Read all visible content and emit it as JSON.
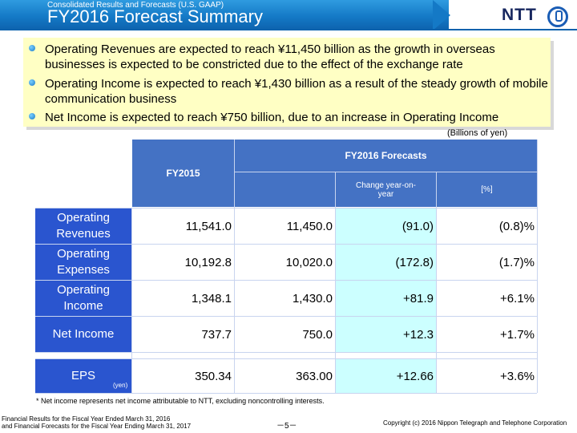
{
  "header": {
    "subtitle": "Consolidated Results and Forecasts (U.S. GAAP)",
    "title": "FY2016 Forecast Summary",
    "logo_text": "NTT"
  },
  "bullets": [
    "Operating Revenues are expected to reach ¥11,450 billion as the growth in overseas businesses is expected to be constricted due to the effect of the exchange rate",
    "Operating Income is expected to reach ¥1,430 billion as a result of the steady growth of mobile communication business",
    "Net Income is expected to reach ¥750 billion, due to an increase in Operating Income"
  ],
  "table": {
    "unit": "(Billions of yen)",
    "col_fy2015": "FY2015",
    "col_forecast": "FY2016 Forecasts",
    "col_change": "Change year-on-year",
    "col_pct": "[%]",
    "rows": [
      {
        "label": "Operating Revenues",
        "fy2015": "11,541.0",
        "fy2016": "11,450.0",
        "change": "(91.0)",
        "pct": "(0.8)%"
      },
      {
        "label": "Operating Expenses",
        "fy2015": "10,192.8",
        "fy2016": "10,020.0",
        "change": "(172.8)",
        "pct": "(1.7)%"
      },
      {
        "label": "Operating Income",
        "fy2015": "1,348.1",
        "fy2016": "1,430.0",
        "change": "+81.9",
        "pct": "+6.1%"
      },
      {
        "label": "Net Income",
        "fy2015": "737.7",
        "fy2016": "750.0",
        "change": "+12.3",
        "pct": "+1.7%"
      }
    ],
    "eps": {
      "label": "EPS",
      "unit": "(yen)",
      "fy2015": "350.34",
      "fy2016": "363.00",
      "change": "+12.66",
      "pct": "+3.6%"
    }
  },
  "footnote": "* Net income represents net income attributable to NTT, excluding noncontrolling interests.",
  "footer": {
    "left_line1": "Financial Results for the Fiscal Year Ended March 31, 2016",
    "left_line2": "and Financial Forecasts for the Fiscal Year Ending March 31, 2017",
    "page": "－5－",
    "copyright": "Copyright (c) 2016  Nippon Telegraph and Telephone Corporation"
  }
}
